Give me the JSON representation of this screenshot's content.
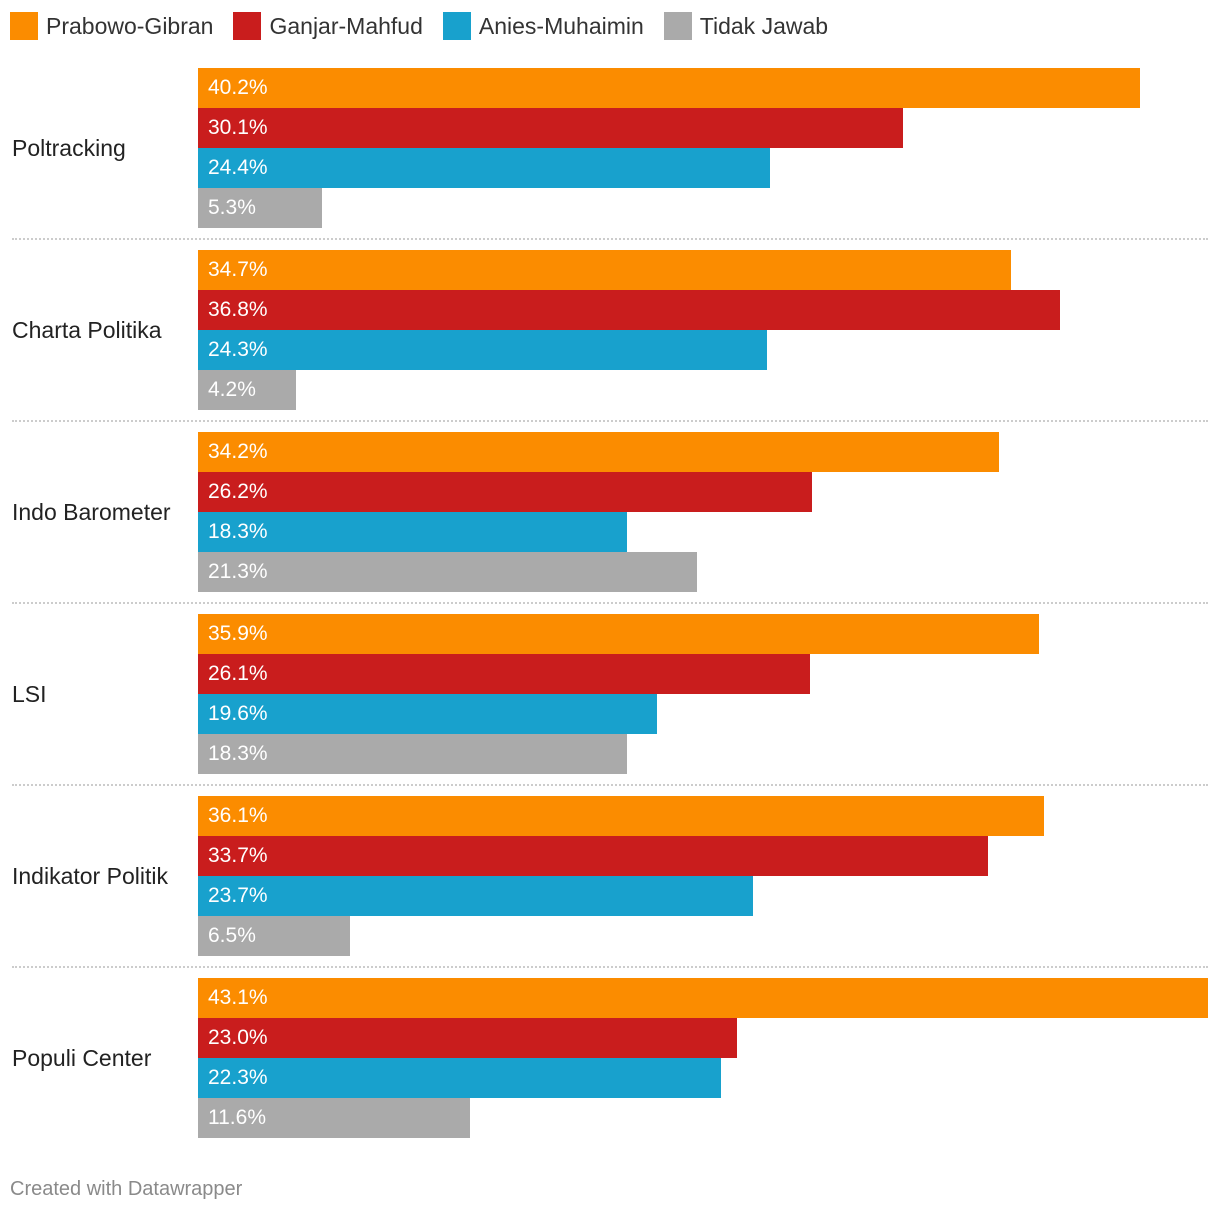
{
  "chart_data": {
    "type": "bar",
    "orientation": "horizontal",
    "categories": [
      "Poltracking",
      "Charta Politika",
      "Indo Barometer",
      "LSI",
      "Indikator Politik",
      "Populi Center"
    ],
    "series": [
      {
        "name": "Prabowo-Gibran",
        "color": "#fb8c00",
        "values": [
          40.2,
          34.7,
          34.2,
          35.9,
          36.1,
          43.1
        ],
        "labels": [
          "40.2%",
          "34.7%",
          "34.2%",
          "35.9%",
          "36.1%",
          "43.1%"
        ]
      },
      {
        "name": "Ganjar-Mahfud",
        "color": "#c91d1d",
        "values": [
          30.1,
          36.8,
          26.2,
          26.1,
          33.7,
          23.0
        ],
        "labels": [
          "30.1%",
          "36.8%",
          "26.2%",
          "26.1%",
          "33.7%",
          "23.0%"
        ]
      },
      {
        "name": "Anies-Muhaimin",
        "color": "#18a1cd",
        "values": [
          24.4,
          24.3,
          18.3,
          19.6,
          23.7,
          22.3
        ],
        "labels": [
          "24.4%",
          "24.3%",
          "18.3%",
          "19.6%",
          "23.7%",
          "22.3%"
        ]
      },
      {
        "name": "Tidak Jawab",
        "color": "#aaaaaa",
        "values": [
          5.3,
          4.2,
          21.3,
          18.3,
          6.5,
          11.6
        ],
        "labels": [
          "5.3%",
          "4.2%",
          "21.3%",
          "18.3%",
          "6.5%",
          "11.6%"
        ]
      }
    ],
    "xlim": [
      0,
      43.1
    ],
    "legend_position": "top-left",
    "grid": false
  },
  "footer": {
    "text": "Created with Datawrapper"
  }
}
